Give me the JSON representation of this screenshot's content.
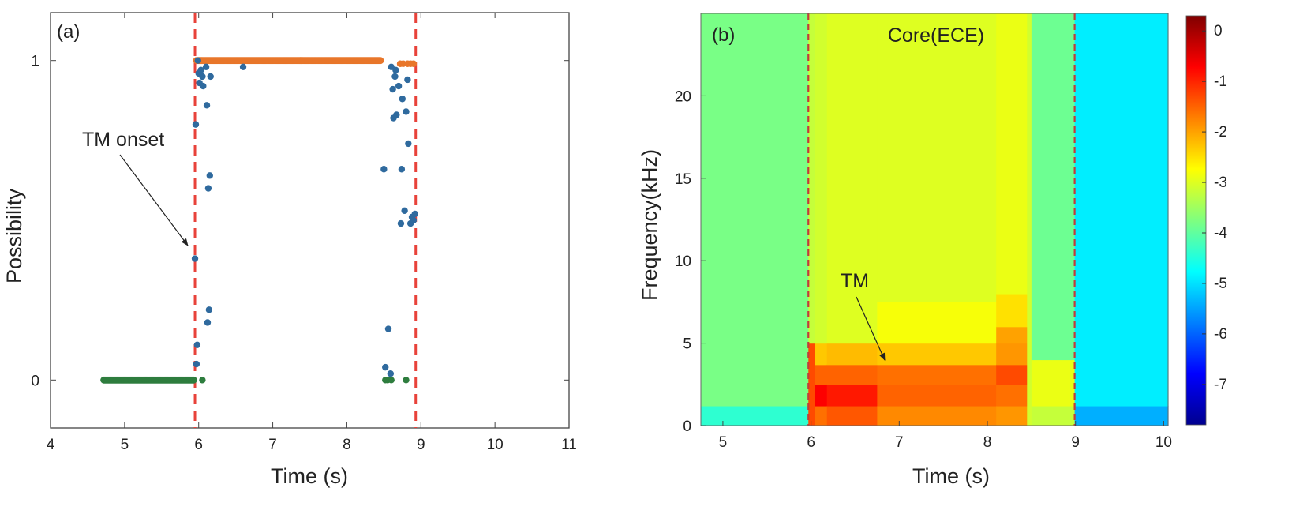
{
  "chart_data": [
    {
      "type": "scatter",
      "panel_label": "(a)",
      "xlabel": "Time (s)",
      "ylabel": "Possibility",
      "xlim": [
        4,
        11
      ],
      "ylim": [
        -0.15,
        1.15
      ],
      "xticks": [
        "4",
        "5",
        "6",
        "7",
        "8",
        "9",
        "10",
        "11"
      ],
      "yticks": [
        "0",
        "1"
      ],
      "grid": false,
      "vlines": {
        "x": [
          5.95,
          8.93
        ],
        "color": "#e8423a",
        "style": "dashed"
      },
      "annotations": [
        {
          "text": "TM onset",
          "point_to": [
            5.95,
            0.43
          ]
        }
      ],
      "colors": {
        "zero_class": "#2e7d3e",
        "one_class": "#e8762a",
        "transition": "#2f6a9e"
      },
      "series": [
        {
          "ranges": [
            [
              4.72,
              5.94,
              0
            ]
          ],
          "points": [
            [
              8.52,
              0
            ],
            [
              8.55,
              0
            ],
            [
              8.6,
              0
            ],
            [
              8.8,
              0
            ],
            [
              6.05,
              0
            ]
          ]
        },
        {
          "ranges": [
            [
              5.97,
              8.46,
              1
            ]
          ],
          "points": [
            [
              8.72,
              0.99
            ],
            [
              8.76,
              0.99
            ],
            [
              8.82,
              0.99
            ],
            [
              8.86,
              0.99
            ],
            [
              8.9,
              0.99
            ]
          ]
        },
        {
          "points": [
            [
              5.95,
              0.38
            ],
            [
              5.96,
              0.8
            ],
            [
              5.97,
              0.05
            ],
            [
              5.98,
              0.11
            ],
            [
              5.99,
              1.0
            ],
            [
              6.0,
              0.96
            ],
            [
              6.01,
              0.93
            ],
            [
              6.03,
              0.97
            ],
            [
              6.05,
              0.95
            ],
            [
              6.06,
              0.92
            ],
            [
              6.1,
              0.98
            ],
            [
              6.11,
              0.86
            ],
            [
              6.12,
              0.18
            ],
            [
              6.13,
              0.6
            ],
            [
              6.14,
              0.22
            ],
            [
              6.15,
              0.64
            ],
            [
              6.16,
              0.95
            ],
            [
              6.6,
              0.98
            ],
            [
              8.5,
              0.66
            ],
            [
              8.52,
              0.04
            ],
            [
              8.56,
              0.16
            ],
            [
              8.59,
              0.02
            ],
            [
              8.6,
              0.98
            ],
            [
              8.62,
              0.91
            ],
            [
              8.63,
              0.82
            ],
            [
              8.65,
              0.95
            ],
            [
              8.66,
              0.97
            ],
            [
              8.67,
              0.83
            ],
            [
              8.7,
              0.92
            ],
            [
              8.73,
              0.49
            ],
            [
              8.74,
              0.66
            ],
            [
              8.75,
              0.88
            ],
            [
              8.78,
              0.53
            ],
            [
              8.8,
              0.84
            ],
            [
              8.82,
              0.94
            ],
            [
              8.83,
              0.74
            ],
            [
              8.86,
              0.49
            ],
            [
              8.88,
              0.51
            ],
            [
              8.9,
              0.5
            ],
            [
              8.92,
              0.52
            ]
          ]
        }
      ]
    },
    {
      "type": "heatmap",
      "panel_label": "(b)",
      "title": "Core(ECE)",
      "xlabel": "Time (s)",
      "ylabel": "Frequency(kHz)",
      "xlim": [
        4.75,
        10.05
      ],
      "ylim": [
        0,
        25
      ],
      "xticks": [
        "5",
        "6",
        "7",
        "8",
        "9",
        "10"
      ],
      "yticks": [
        "0",
        "5",
        "10",
        "15",
        "20"
      ],
      "colorbar": {
        "min": -7.8,
        "max": 0.3,
        "ticks": [
          "0",
          "-1",
          "-2",
          "-3",
          "-4",
          "-5",
          "-6",
          "-7"
        ]
      },
      "vlines": {
        "x": [
          5.97,
          8.99
        ],
        "color": "#c23b3b",
        "style": "dashed"
      },
      "annotations": [
        {
          "text": "TM",
          "point_to": [
            6.88,
            3.6
          ]
        }
      ],
      "regions": [
        {
          "t": [
            4.75,
            5.97
          ],
          "bands": [
            [
              0,
              1.2,
              -4.4
            ],
            [
              1.2,
              25,
              -3.8
            ]
          ]
        },
        {
          "t": [
            5.97,
            6.04
          ],
          "bands": [
            [
              0,
              5,
              -1.3
            ],
            [
              5,
              25,
              -3.2
            ]
          ]
        },
        {
          "t": [
            6.04,
            6.18
          ],
          "bands": [
            [
              0,
              1.2,
              -1.6
            ],
            [
              1.2,
              2.5,
              -0.7
            ],
            [
              2.5,
              3.7,
              -1.5
            ],
            [
              3.7,
              5,
              -2.3
            ],
            [
              5,
              25,
              -3.1
            ]
          ]
        },
        {
          "t": [
            6.18,
            6.75
          ],
          "bands": [
            [
              0,
              1.2,
              -1.4
            ],
            [
              1.2,
              2.5,
              -0.9
            ],
            [
              2.5,
              3.7,
              -1.5
            ],
            [
              3.7,
              5,
              -2.2
            ],
            [
              5,
              25,
              -3.0
            ]
          ]
        },
        {
          "t": [
            6.75,
            8.1
          ],
          "bands": [
            [
              0,
              1.2,
              -1.8
            ],
            [
              1.2,
              2.5,
              -1.5
            ],
            [
              2.5,
              3.7,
              -1.6
            ],
            [
              3.7,
              5,
              -2.3
            ],
            [
              5,
              7.5,
              -2.8
            ],
            [
              7.5,
              25,
              -3.0
            ]
          ]
        },
        {
          "t": [
            8.1,
            8.45
          ],
          "bands": [
            [
              0,
              1.2,
              -1.9
            ],
            [
              1.2,
              2.5,
              -1.6
            ],
            [
              2.5,
              3.7,
              -1.3
            ],
            [
              3.7,
              5,
              -1.9
            ],
            [
              5,
              6,
              -2.0
            ],
            [
              6,
              8,
              -2.5
            ],
            [
              8,
              25,
              -2.9
            ]
          ]
        },
        {
          "t": [
            8.45,
            8.5
          ],
          "bands": [
            [
              0,
              25,
              -3.1
            ]
          ]
        },
        {
          "t": [
            8.5,
            8.99
          ],
          "bands": [
            [
              0,
              1.2,
              -3.2
            ],
            [
              1.2,
              4,
              -2.9
            ],
            [
              4,
              25,
              -3.9
            ]
          ]
        },
        {
          "t": [
            8.99,
            10.05
          ],
          "bands": [
            [
              0,
              1.2,
              -5.4
            ],
            [
              1.2,
              25,
              -4.9
            ]
          ]
        }
      ]
    }
  ]
}
